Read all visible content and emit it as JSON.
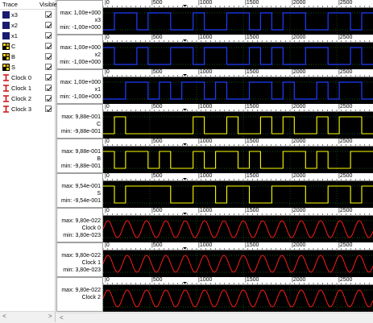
{
  "trace_table": {
    "headers": {
      "trace": "Trace",
      "visible": "Visible"
    },
    "rows": [
      {
        "label": "x3",
        "icon": "digital-trace-icon",
        "visible": true
      },
      {
        "label": "x2",
        "icon": "digital-trace-icon",
        "visible": true
      },
      {
        "label": "x1",
        "icon": "digital-trace-icon",
        "visible": true
      },
      {
        "label": "C",
        "icon": "analog-bus-icon",
        "visible": true
      },
      {
        "label": "B",
        "icon": "analog-bus-icon",
        "visible": true
      },
      {
        "label": "S",
        "icon": "analog-bus-icon",
        "visible": true
      },
      {
        "label": "Clock 0",
        "icon": "clock-trace-icon",
        "visible": true
      },
      {
        "label": "Clock 1",
        "icon": "clock-trace-icon",
        "visible": true
      },
      {
        "label": "Clock 2",
        "icon": "clock-trace-icon",
        "visible": true
      },
      {
        "label": "Clock 3",
        "icon": "clock-trace-icon",
        "visible": true
      }
    ]
  },
  "ruler_labels": [
    "0",
    "500",
    "1000",
    "1500",
    "2000",
    "2500"
  ],
  "colors": {
    "digital": "#1e3cff",
    "analog": "#ffff00",
    "clock": "#ff1a1a",
    "grid": "#2ea02e"
  },
  "plots": [
    {
      "max": "max: 1,00e+000",
      "name": "x3",
      "min": "min: -1,00e+000",
      "kind": "digital",
      "levels": [
        0,
        1,
        1,
        0,
        1,
        1,
        0,
        0,
        1,
        0,
        0,
        1,
        1,
        0,
        1,
        0,
        1,
        1,
        0,
        0,
        1,
        1,
        0,
        1
      ]
    },
    {
      "max": "max: 1,00e+000",
      "name": "x2",
      "min": "min: -1,00e+000",
      "kind": "digital",
      "levels": [
        1,
        0,
        0,
        1,
        0,
        0,
        1,
        1,
        0,
        1,
        1,
        0,
        0,
        1,
        0,
        1,
        0,
        0,
        1,
        1,
        0,
        0,
        1,
        0
      ]
    },
    {
      "max": "max: 1,00e+000",
      "name": "x1",
      "min": "min: -1,00e+000",
      "kind": "digital",
      "levels": [
        0,
        0,
        1,
        1,
        0,
        1,
        0,
        1,
        1,
        0,
        1,
        0,
        0,
        1,
        1,
        0,
        1,
        0,
        0,
        1,
        0,
        1,
        1,
        0
      ]
    },
    {
      "max": "max: 9,88e-001",
      "name": "C",
      "min": "min: -9,88e-001",
      "kind": "analog",
      "levels": [
        0,
        1,
        0,
        0,
        0,
        0,
        0,
        0,
        1,
        0,
        0,
        1,
        0,
        0,
        1,
        0,
        1,
        0,
        0,
        1,
        0,
        1,
        1,
        0
      ]
    },
    {
      "max": "max: 9,88e-001",
      "name": "B",
      "min": "min: -9,88e-001",
      "kind": "analog",
      "levels": [
        1,
        0,
        1,
        1,
        0,
        1,
        0,
        0,
        1,
        0,
        1,
        1,
        0,
        1,
        0,
        0,
        1,
        1,
        0,
        1,
        0,
        0,
        1,
        1
      ]
    },
    {
      "max": "max: 9,54e-001",
      "name": "S",
      "min": "min: -9,54e-001",
      "kind": "analog",
      "levels": [
        1,
        0,
        1,
        1,
        1,
        1,
        0,
        0,
        1,
        1,
        0,
        1,
        1,
        0,
        0,
        1,
        1,
        1,
        0,
        0,
        1,
        1,
        0,
        1
      ]
    },
    {
      "max": "max: 9,80e-022",
      "name": "Clock 0",
      "min": "min: 3,80e-023",
      "kind": "clock",
      "levels": []
    },
    {
      "max": "max: 9,80e-022",
      "name": "Clock 1",
      "min": "min: 3,80e-023",
      "kind": "clock",
      "levels": []
    },
    {
      "max": "max: 9,80e-022",
      "name": "Clock 2",
      "min": "",
      "kind": "clock",
      "levels": []
    }
  ],
  "scroll": {
    "left_arrow": "<",
    "right_arrow": ">",
    "left_arrow2": "<"
  }
}
